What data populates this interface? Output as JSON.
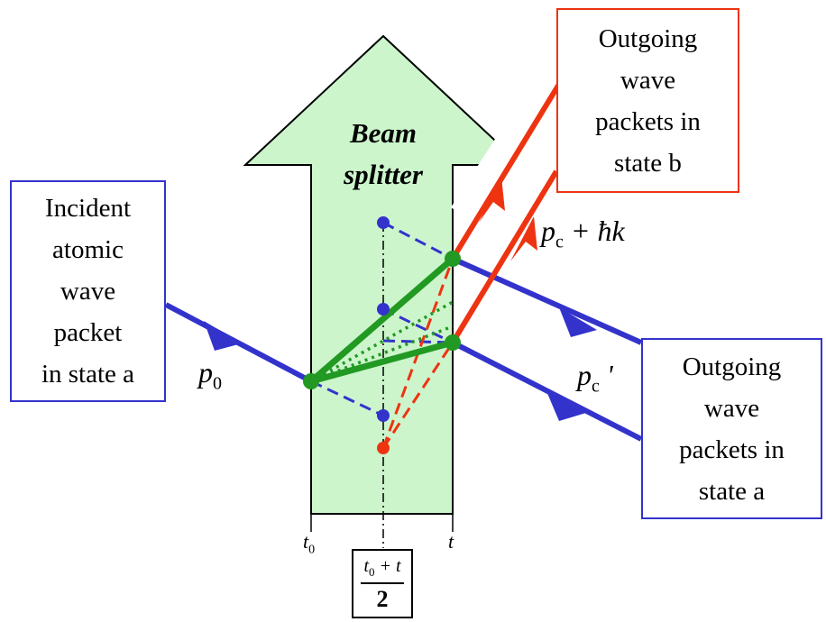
{
  "beam_splitter": {
    "line1": "Beam",
    "line2": "splitter"
  },
  "incident_box": {
    "lines": [
      "Incident",
      "atomic",
      "wave",
      "packet",
      "in state a"
    ]
  },
  "outgoing_b_box": {
    "lines": [
      "Outgoing",
      "wave",
      "packets in",
      "state b"
    ]
  },
  "outgoing_a_box": {
    "lines": [
      "Outgoing",
      "wave",
      "packets in",
      "state a"
    ]
  },
  "labels": {
    "p0_main": "p",
    "p0_sub": "0",
    "pc_hk_main": "p",
    "pc_hk_sub": "c",
    "pc_hk_rest": " + ħk",
    "pcp_main": "p",
    "pcp_sub": "c",
    "pcp_rest": " '"
  },
  "time_axis": {
    "t0_main": "t",
    "t0_sub": "0",
    "t_label": "t",
    "mid_num_main": "t",
    "mid_num_sub": "0",
    "mid_num_rest": " + t",
    "mid_den": "2"
  },
  "colors": {
    "beam_splitter_fill": "#ccf5cc",
    "state_a_blue": "#3333cc",
    "state_b_red": "#ee3311",
    "trajectory_green": "#229922"
  }
}
